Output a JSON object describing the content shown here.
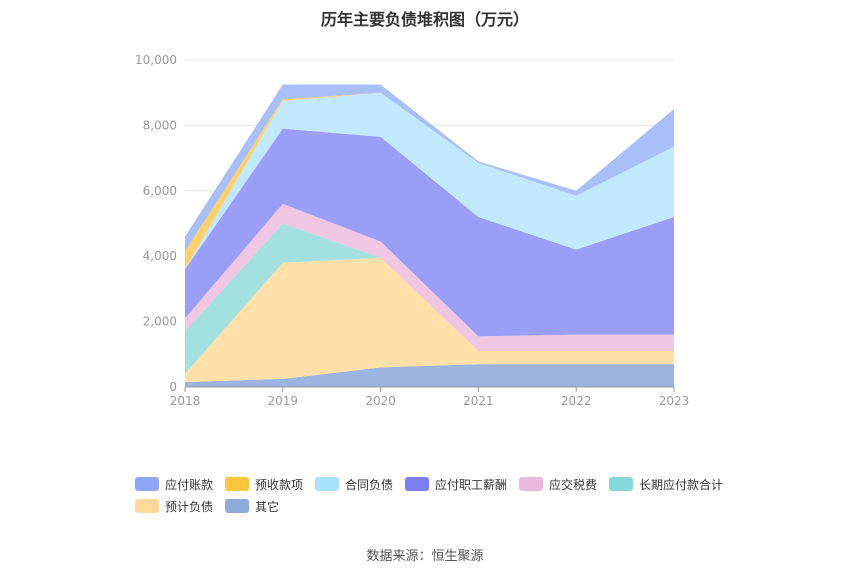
{
  "chart_data": {
    "type": "area",
    "stacked": true,
    "title": "历年主要负债堆积图（万元）",
    "categories": [
      "2018",
      "2019",
      "2020",
      "2021",
      "2022",
      "2023"
    ],
    "ylim": [
      0,
      10000
    ],
    "yticks": [
      "0",
      "2,000",
      "4,000",
      "6,000",
      "8,000",
      "10,000"
    ],
    "ytick_values": [
      0,
      2000,
      4000,
      6000,
      8000,
      10000
    ],
    "grid": true,
    "legend_position": "bottom",
    "series": [
      {
        "name": "其它",
        "values": [
          150,
          250,
          600,
          700,
          700,
          700
        ],
        "color": "#9bb5e0"
      },
      {
        "name": "预计负债",
        "values": [
          250,
          3550,
          3350,
          400,
          400,
          400
        ],
        "color": "#ffe0a8"
      },
      {
        "name": "长期应付款合计",
        "values": [
          1300,
          1200,
          0,
          0,
          0,
          0
        ],
        "color": "#a3e0e0"
      },
      {
        "name": "应交税费",
        "values": [
          400,
          600,
          500,
          450,
          500,
          500
        ],
        "color": "#f0c7e3"
      },
      {
        "name": "应付职工薪酬",
        "values": [
          1500,
          2300,
          3200,
          3650,
          2600,
          3600
        ],
        "color": "#9a9ef7"
      },
      {
        "name": "合同负债",
        "values": [
          0,
          850,
          1350,
          1650,
          1650,
          2150
        ],
        "color": "#c2e9fb"
      },
      {
        "name": "预收款项",
        "values": [
          550,
          50,
          0,
          0,
          0,
          0
        ],
        "color": "#ffd06e"
      },
      {
        "name": "应付账款",
        "values": [
          450,
          450,
          250,
          50,
          150,
          1150
        ],
        "color": "#a8bff7"
      }
    ]
  },
  "legend": [
    {
      "name": "应付账款",
      "color": "#8ea8f5"
    },
    {
      "name": "预收款项",
      "color": "#ffc53d"
    },
    {
      "name": "合同负债",
      "color": "#a9e3fb"
    },
    {
      "name": "应付职工薪酬",
      "color": "#7b7ff3"
    },
    {
      "name": "应交税费",
      "color": "#ebb8dc"
    },
    {
      "name": "长期应付款合计",
      "color": "#84d8d8"
    },
    {
      "name": "预计负债",
      "color": "#ffd99a"
    },
    {
      "name": "其它",
      "color": "#8fabdc"
    }
  ],
  "source": "数据来源：恒生聚源"
}
